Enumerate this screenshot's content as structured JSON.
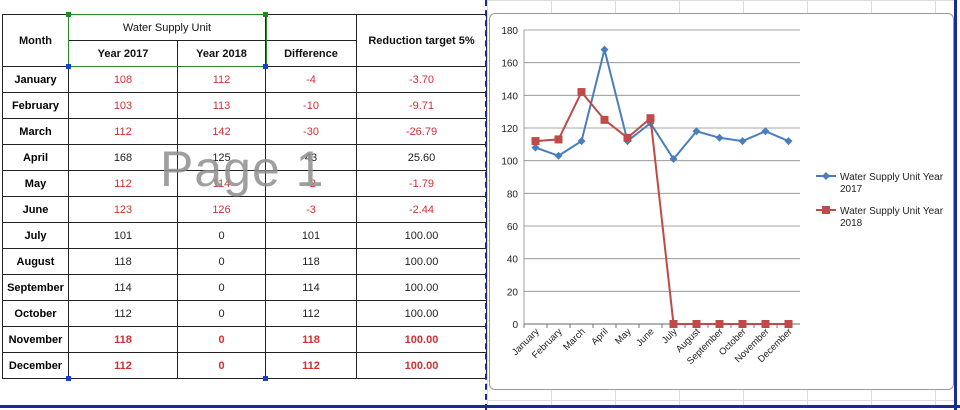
{
  "table": {
    "header": {
      "month": "Month",
      "group": "Water Supply Unit",
      "year2017": "Year 2017",
      "year2018": "Year 2018",
      "difference": "Difference",
      "reduction": "Reduction target 5%"
    },
    "rows": [
      {
        "month": "January",
        "y2017": "108",
        "y2018": "112",
        "diff": "-4",
        "reduction": "-3.70",
        "style": "red"
      },
      {
        "month": "February",
        "y2017": "103",
        "y2018": "113",
        "diff": "-10",
        "reduction": "-9.71",
        "style": "red"
      },
      {
        "month": "March",
        "y2017": "112",
        "y2018": "142",
        "diff": "-30",
        "reduction": "-26.79",
        "style": "red"
      },
      {
        "month": "April",
        "y2017": "168",
        "y2018": "125",
        "diff": "43",
        "reduction": "25.60",
        "style": "black"
      },
      {
        "month": "May",
        "y2017": "112",
        "y2018": "114",
        "diff": "-2",
        "reduction": "-1.79",
        "style": "red"
      },
      {
        "month": "June",
        "y2017": "123",
        "y2018": "126",
        "diff": "-3",
        "reduction": "-2.44",
        "style": "red"
      },
      {
        "month": "July",
        "y2017": "101",
        "y2018": "0",
        "diff": "101",
        "reduction": "100.00",
        "style": "black"
      },
      {
        "month": "August",
        "y2017": "118",
        "y2018": "0",
        "diff": "118",
        "reduction": "100.00",
        "style": "black"
      },
      {
        "month": "September",
        "y2017": "114",
        "y2018": "0",
        "diff": "114",
        "reduction": "100.00",
        "style": "black"
      },
      {
        "month": "October",
        "y2017": "112",
        "y2018": "0",
        "diff": "112",
        "reduction": "100.00",
        "style": "black"
      },
      {
        "month": "November",
        "y2017": "118",
        "y2018": "0",
        "diff": "118",
        "reduction": "100.00",
        "style": "redbold"
      },
      {
        "month": "December",
        "y2017": "112",
        "y2018": "0",
        "diff": "112",
        "reduction": "100.00",
        "style": "redbold"
      }
    ]
  },
  "watermark": "Page 1",
  "colors": {
    "red": "#d03030",
    "series1": "#4a7ebb",
    "series2": "#be4b48",
    "pagebreak": "#1a2a9a"
  },
  "chart_data": {
    "type": "line",
    "categories": [
      "January",
      "February",
      "March",
      "April",
      "May",
      "June",
      "July",
      "August",
      "September",
      "October",
      "November",
      "December"
    ],
    "series": [
      {
        "name": "Water Supply Unit Year 2017",
        "values": [
          108,
          103,
          112,
          168,
          112,
          123,
          101,
          118,
          114,
          112,
          118,
          112
        ],
        "marker": "diamond",
        "color": "#4a7ebb"
      },
      {
        "name": "Water Supply Unit Year 2018",
        "values": [
          112,
          113,
          142,
          125,
          114,
          126,
          0,
          0,
          0,
          0,
          0,
          0
        ],
        "marker": "square",
        "color": "#be4b48"
      }
    ],
    "ylim": [
      0,
      180
    ],
    "yticks": [
      0,
      20,
      40,
      60,
      80,
      100,
      120,
      140,
      160,
      180
    ],
    "grid": true,
    "legend": "right"
  }
}
